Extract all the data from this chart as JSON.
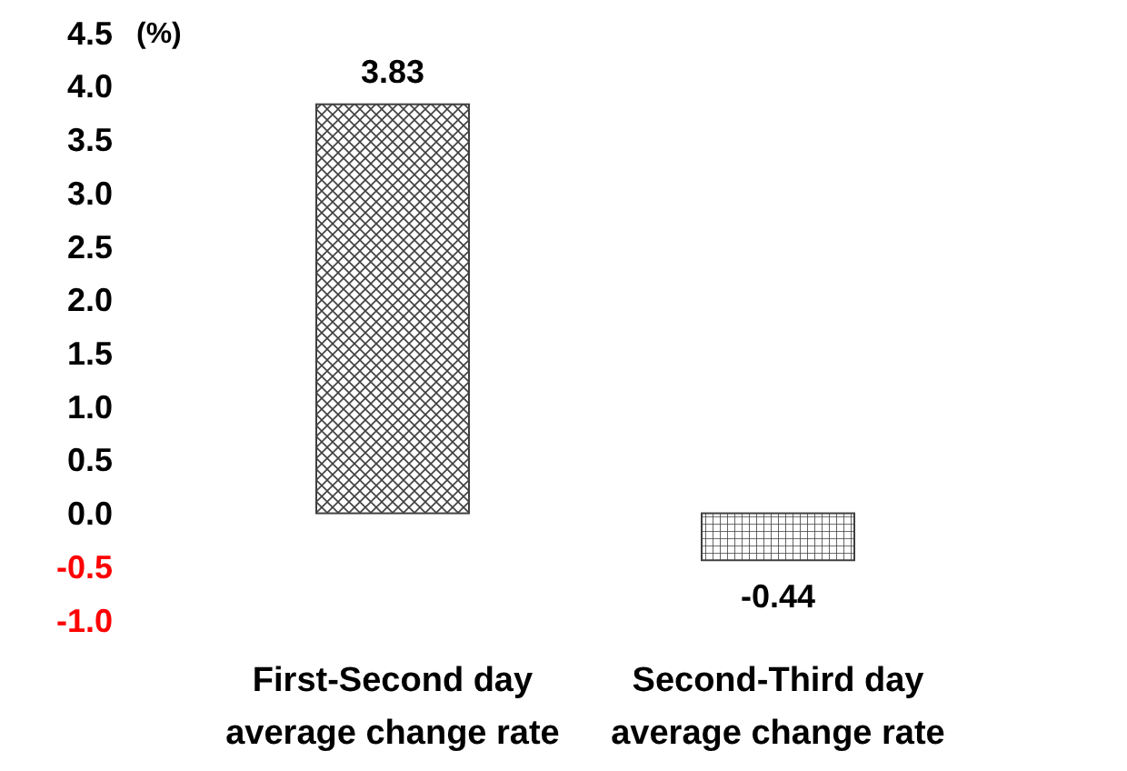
{
  "chart_data": {
    "type": "bar",
    "ylabel": "(%)",
    "categories": [
      "First-Second day average change rate",
      "Second-Third day average change rate"
    ],
    "values": [
      3.83,
      -0.44
    ],
    "colors": [
      "#404040",
      "#404040"
    ],
    "ylim": [
      -1.0,
      4.5
    ],
    "yticks": [
      {
        "value": -1.0,
        "label": "-1.0"
      },
      {
        "value": -0.5,
        "label": "-0.5"
      },
      {
        "value": 0,
        "label": "0.0"
      },
      {
        "value": 0.5,
        "label": "0.5"
      },
      {
        "value": 1.0,
        "label": "1.0"
      },
      {
        "value": 1.5,
        "label": "1.5"
      },
      {
        "value": 2.0,
        "label": "2.0"
      },
      {
        "value": 2.5,
        "label": "2.5"
      },
      {
        "value": 3.0,
        "label": "3.0"
      },
      {
        "value": 3.5,
        "label": "3.5"
      },
      {
        "value": 4.0,
        "label": "4.0"
      },
      {
        "value": 4.5,
        "label": "4.5"
      }
    ],
    "data_labels": true
  }
}
